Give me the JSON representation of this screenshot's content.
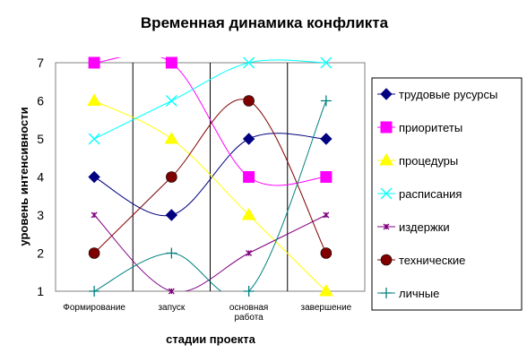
{
  "chart_data": {
    "type": "line",
    "title": "Временная динамика конфликта",
    "xlabel": "стадии проекта",
    "ylabel": "уровень интенсивности",
    "categories": [
      [
        "Формирование"
      ],
      [
        "запуск"
      ],
      [
        "основная",
        "работа"
      ],
      [
        "завершение"
      ]
    ],
    "ylim": [
      1,
      7
    ],
    "yticks": [
      "1",
      "2",
      "3",
      "4",
      "5",
      "6",
      "7"
    ],
    "smooth": true,
    "grid": false,
    "legend_position": "right",
    "series": [
      {
        "name": "трудовые русурсы",
        "values": [
          4,
          3,
          5,
          5
        ],
        "color": "#000080",
        "marker": "diamond"
      },
      {
        "name": "приоритеты",
        "values": [
          7,
          7,
          4,
          4
        ],
        "color": "#FF00FF",
        "marker": "square"
      },
      {
        "name": "процедуры",
        "values": [
          6,
          5,
          3,
          1
        ],
        "color": "#FFFF00",
        "marker": "triangle"
      },
      {
        "name": "расписания",
        "values": [
          5,
          6,
          7,
          7
        ],
        "color": "#00FFFF",
        "marker": "x"
      },
      {
        "name": "издержки",
        "values": [
          3,
          1,
          2,
          3
        ],
        "color": "#800080",
        "marker": "star"
      },
      {
        "name": "технические",
        "values": [
          2,
          4,
          6,
          2
        ],
        "color": "#800000",
        "marker": "circle"
      },
      {
        "name": "личные",
        "values": [
          1,
          2,
          1,
          6
        ],
        "color": "#008080",
        "marker": "plus"
      }
    ]
  }
}
